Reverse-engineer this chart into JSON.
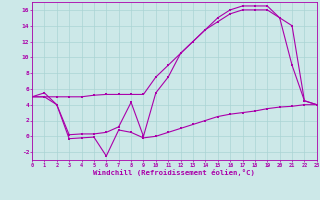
{
  "xlabel": "Windchill (Refroidissement éolien,°C)",
  "bg_color": "#cce8e8",
  "grid_color": "#aad4d4",
  "line_color": "#aa00aa",
  "xlim": [
    0,
    23
  ],
  "ylim": [
    -3,
    17
  ],
  "xticks": [
    0,
    1,
    2,
    3,
    4,
    5,
    6,
    7,
    8,
    9,
    10,
    11,
    12,
    13,
    14,
    15,
    16,
    17,
    18,
    19,
    20,
    21,
    22,
    23
  ],
  "yticks": [
    -2,
    0,
    2,
    4,
    6,
    8,
    10,
    12,
    14,
    16
  ],
  "line1_x": [
    0,
    1,
    2,
    3,
    4,
    5,
    6,
    7,
    8,
    9,
    10,
    11,
    12,
    13,
    14,
    15,
    16,
    17,
    18,
    19,
    20,
    21,
    22,
    23
  ],
  "line1_y": [
    5.0,
    5.5,
    4.0,
    0.2,
    0.3,
    0.3,
    0.5,
    1.2,
    4.3,
    0.0,
    5.5,
    7.5,
    10.5,
    12.0,
    13.5,
    15.0,
    16.0,
    16.5,
    16.5,
    16.5,
    15.0,
    9.0,
    4.5,
    4.0
  ],
  "line2_x": [
    0,
    1,
    2,
    3,
    4,
    5,
    6,
    7,
    8,
    9,
    10,
    11,
    12,
    13,
    14,
    15,
    16,
    17,
    18,
    19,
    20,
    21,
    22,
    23
  ],
  "line2_y": [
    5.0,
    5.0,
    5.0,
    5.0,
    5.0,
    5.2,
    5.3,
    5.3,
    5.3,
    5.3,
    7.5,
    9.0,
    10.5,
    12.0,
    13.5,
    14.5,
    15.5,
    16.0,
    16.0,
    16.0,
    15.0,
    14.0,
    4.5,
    4.0
  ],
  "line3_x": [
    0,
    1,
    2,
    3,
    4,
    5,
    6,
    7,
    8,
    9,
    10,
    11,
    12,
    13,
    14,
    15,
    16,
    17,
    18,
    19,
    20,
    21,
    22,
    23
  ],
  "line3_y": [
    5.0,
    5.0,
    4.0,
    -0.3,
    -0.2,
    -0.1,
    -2.5,
    0.8,
    0.5,
    -0.2,
    0.0,
    0.5,
    1.0,
    1.5,
    2.0,
    2.5,
    2.8,
    3.0,
    3.2,
    3.5,
    3.7,
    3.8,
    4.0,
    4.0
  ],
  "ytick_labels": [
    "-2",
    "0",
    "2",
    "4",
    "6",
    "8",
    "10",
    "12",
    "14",
    "16"
  ],
  "xtick_labels": [
    "0",
    "1",
    "2",
    "3",
    "4",
    "5",
    "6",
    "7",
    "8",
    "9",
    "10",
    "11",
    "12",
    "13",
    "14",
    "15",
    "16",
    "17",
    "18",
    "19",
    "20",
    "21",
    "22",
    "23"
  ]
}
